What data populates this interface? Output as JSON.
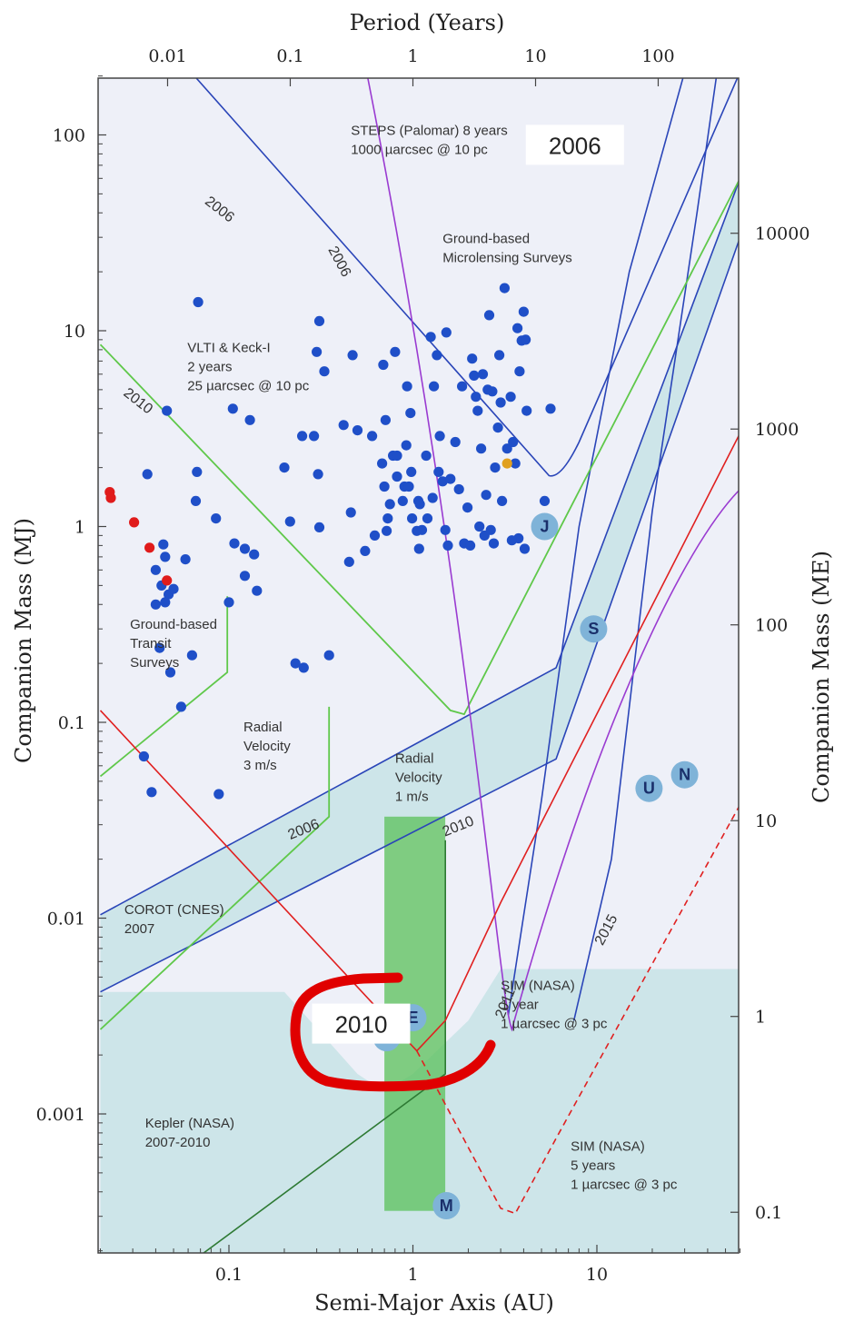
{
  "chart_data": {
    "type": "scatter",
    "xscale": "log",
    "yscale": "log",
    "xlim": [
      0.02,
      60
    ],
    "ylim": [
      0.00018,
      210
    ],
    "top_axis_label": "Period (Years)",
    "top_ticks": [
      {
        "label": "0.01",
        "a": 0.0464
      },
      {
        "label": "0.1",
        "a": 0.2154
      },
      {
        "label": "1",
        "a": 1.0
      },
      {
        "label": "10",
        "a": 4.642
      },
      {
        "label": "100",
        "a": 21.54
      }
    ],
    "xlabel": "Semi-Major Axis (AU)",
    "x_ticks": [
      {
        "label": "0.1",
        "v": 0.1
      },
      {
        "label": "1",
        "v": 1
      },
      {
        "label": "10",
        "v": 10
      }
    ],
    "ylabel_left": "Companion Mass (MJ)",
    "y_ticks_left": [
      {
        "label": "100",
        "v": 100
      },
      {
        "label": "10",
        "v": 10
      },
      {
        "label": "1",
        "v": 1
      },
      {
        "label": "0.1",
        "v": 0.1
      },
      {
        "label": "0.01",
        "v": 0.01
      },
      {
        "label": "0.001",
        "v": 0.001
      }
    ],
    "ylabel_right": "Companion Mass (ME)",
    "y_ticks_right": [
      {
        "label": "10000",
        "v": 10000
      },
      {
        "label": "1000",
        "v": 1000
      },
      {
        "label": "100",
        "v": 100
      },
      {
        "label": "10",
        "v": 10
      },
      {
        "label": "1",
        "v": 1
      },
      {
        "label": "0.1",
        "v": 0.1
      }
    ],
    "earth_per_jupiter": 317.8,
    "boxes": [
      {
        "label": "2006",
        "a": 4.5,
        "m": 80
      },
      {
        "label": "2010",
        "a": 0.31,
        "m": 0.0026
      }
    ],
    "annotations": [
      {
        "lines": [
          "STEPS (Palomar) 8 years",
          "1000 µarcsec @ 10 pc"
        ],
        "a": 0.46,
        "m": 100
      },
      {
        "lines": [
          "Ground-based",
          "Microlensing Surveys"
        ],
        "a": 1.45,
        "m": 28
      },
      {
        "lines": [
          "VLTI & Keck-I",
          "2 years",
          "25 µarcsec @ 10 pc"
        ],
        "a": 0.0595,
        "m": 7.8
      },
      {
        "lines": [
          "Ground-based",
          "Transit",
          "Surveys"
        ],
        "a": 0.029,
        "m": 0.3
      },
      {
        "lines": [
          "Radial",
          "Velocity",
          "3 m/s"
        ],
        "a": 0.12,
        "m": 0.09
      },
      {
        "lines": [
          "Radial",
          "Velocity",
          "1 m/s"
        ],
        "a": 0.8,
        "m": 0.062
      },
      {
        "lines": [
          "COROT (CNES)",
          "2007"
        ],
        "a": 0.027,
        "m": 0.0105
      },
      {
        "lines": [
          "SIM (NASA)",
          "1 year",
          "1 µarcsec @ 3 pc"
        ],
        "a": 3.0,
        "m": 0.0043
      },
      {
        "lines": [
          "SIM (NASA)",
          "5 years",
          "1 µarcsec @ 3 pc"
        ],
        "a": 7.2,
        "m": 0.00065
      },
      {
        "lines": [
          "Kepler (NASA)",
          "2007-2010"
        ],
        "a": 0.035,
        "m": 0.00085
      }
    ],
    "year_labels": [
      {
        "label": "2006",
        "a": 0.086,
        "m": 40,
        "rot": 38
      },
      {
        "label": "2006",
        "a": 0.38,
        "m": 22,
        "rot": 62
      },
      {
        "label": "2010",
        "a": 0.031,
        "m": 4.2,
        "rot": 38
      },
      {
        "label": "2006",
        "a": 0.26,
        "m": 0.027,
        "rot": -22
      },
      {
        "label": "2010",
        "a": 1.8,
        "m": 0.028,
        "rot": -22
      },
      {
        "label": "2011",
        "a": 3.35,
        "m": 0.0036,
        "rot": -68
      },
      {
        "label": "2015",
        "a": 11.8,
        "m": 0.0085,
        "rot": -62
      }
    ],
    "series": [
      {
        "name": "",
        "color": "#1f4fc8",
        "points": [
          [
            0.017,
            0.9
          ],
          [
            0.014,
            1.3
          ],
          [
            0.018,
            0.29
          ],
          [
            0.015,
            4.0
          ],
          [
            0.036,
            1.85
          ],
          [
            0.0345,
            0.067
          ],
          [
            0.038,
            0.044
          ],
          [
            0.04,
            0.6
          ],
          [
            0.04,
            0.4
          ],
          [
            0.042,
            0.24
          ],
          [
            0.044,
            0.81
          ],
          [
            0.045,
            0.7
          ],
          [
            0.043,
            0.5
          ],
          [
            0.045,
            0.41
          ],
          [
            0.046,
            3.9
          ],
          [
            0.047,
            0.45
          ],
          [
            0.048,
            0.18
          ],
          [
            0.05,
            0.48
          ],
          [
            0.055,
            0.12
          ],
          [
            0.058,
            0.68
          ],
          [
            0.063,
            0.22
          ],
          [
            0.067,
            1.9
          ],
          [
            0.068,
            14.0
          ],
          [
            0.066,
            1.35
          ],
          [
            0.085,
            1.1
          ],
          [
            0.088,
            0.043
          ],
          [
            0.1,
            0.41
          ],
          [
            0.105,
            4.0
          ],
          [
            0.107,
            0.82
          ],
          [
            0.122,
            0.77
          ],
          [
            0.13,
            3.5
          ],
          [
            0.122,
            0.56
          ],
          [
            0.137,
            0.72
          ],
          [
            0.142,
            0.47
          ],
          [
            0.2,
            2.0
          ],
          [
            0.215,
            1.06
          ],
          [
            0.23,
            0.2
          ],
          [
            0.255,
            0.19
          ],
          [
            0.25,
            2.9
          ],
          [
            0.31,
            0.99
          ],
          [
            0.305,
            1.85
          ],
          [
            0.29,
            2.9
          ],
          [
            0.3,
            7.8
          ],
          [
            0.31,
            11.2
          ],
          [
            0.33,
            6.2
          ],
          [
            0.35,
            0.22
          ],
          [
            0.42,
            3.3
          ],
          [
            0.45,
            0.66
          ],
          [
            0.46,
            1.18
          ],
          [
            0.47,
            7.5
          ],
          [
            0.5,
            3.1
          ],
          [
            0.55,
            0.75
          ],
          [
            0.6,
            2.9
          ],
          [
            0.62,
            0.9
          ],
          [
            0.68,
            2.1
          ],
          [
            0.69,
            6.7
          ],
          [
            0.7,
            1.6
          ],
          [
            0.71,
            3.5
          ],
          [
            0.73,
            1.1
          ],
          [
            0.72,
            0.95
          ],
          [
            0.75,
            1.3
          ],
          [
            0.78,
            2.3
          ],
          [
            0.8,
            7.8
          ],
          [
            0.82,
            1.8
          ],
          [
            0.82,
            2.3
          ],
          [
            0.88,
            1.35
          ],
          [
            0.9,
            1.6
          ],
          [
            0.92,
            2.6
          ],
          [
            0.93,
            5.2
          ],
          [
            0.95,
            1.6
          ],
          [
            0.97,
            3.8
          ],
          [
            0.98,
            1.9
          ],
          [
            0.99,
            1.1
          ],
          [
            1.05,
            0.95
          ],
          [
            1.07,
            1.35
          ],
          [
            1.09,
            1.3
          ],
          [
            1.08,
            0.77
          ],
          [
            1.12,
            0.96
          ],
          [
            1.18,
            2.3
          ],
          [
            1.2,
            1.1
          ],
          [
            1.25,
            9.3
          ],
          [
            1.28,
            1.4
          ],
          [
            1.3,
            5.2
          ],
          [
            1.35,
            7.5
          ],
          [
            1.38,
            1.9
          ],
          [
            1.4,
            2.9
          ],
          [
            1.45,
            1.7
          ],
          [
            1.52,
            9.8
          ],
          [
            1.5,
            0.96
          ],
          [
            1.55,
            0.8
          ],
          [
            1.6,
            1.75
          ],
          [
            1.7,
            2.7
          ],
          [
            1.78,
            1.55
          ],
          [
            1.85,
            5.2
          ],
          [
            1.9,
            0.82
          ],
          [
            1.98,
            1.25
          ],
          [
            2.05,
            0.8
          ],
          [
            2.1,
            7.2
          ],
          [
            2.15,
            5.9
          ],
          [
            2.2,
            4.6
          ],
          [
            2.25,
            3.9
          ],
          [
            2.3,
            1.0
          ],
          [
            2.35,
            2.5
          ],
          [
            2.4,
            6.0
          ],
          [
            2.45,
            0.9
          ],
          [
            2.55,
            5.0
          ],
          [
            2.6,
            12.0
          ],
          [
            2.65,
            0.96
          ],
          [
            2.7,
            4.9
          ],
          [
            2.75,
            0.82
          ],
          [
            2.8,
            2.0
          ],
          [
            2.9,
            3.2
          ],
          [
            2.95,
            7.5
          ],
          [
            3.0,
            4.3
          ],
          [
            3.05,
            1.35
          ],
          [
            3.15,
            16.5
          ],
          [
            3.25,
            2.5
          ],
          [
            3.4,
            4.6
          ],
          [
            3.5,
            2.7
          ],
          [
            3.6,
            2.1
          ],
          [
            3.7,
            10.3
          ],
          [
            3.75,
            0.87
          ],
          [
            3.8,
            6.2
          ],
          [
            3.9,
            8.9
          ],
          [
            4.0,
            12.5
          ],
          [
            4.05,
            0.77
          ],
          [
            4.1,
            9.0
          ],
          [
            4.15,
            3.9
          ],
          [
            5.2,
            1.35
          ],
          [
            5.6,
            4.0
          ],
          [
            3.45,
            0.85
          ],
          [
            2.5,
            1.45
          ]
        ]
      },
      {
        "name": "",
        "color": "#e01b1b",
        "points": [
          [
            0.0225,
            1.5
          ],
          [
            0.0228,
            1.4
          ],
          [
            0.0305,
            1.05
          ],
          [
            0.037,
            0.78
          ],
          [
            0.046,
            0.53
          ]
        ]
      },
      {
        "name": "",
        "color": "#e0a020",
        "points": [
          [
            3.25,
            2.1
          ]
        ]
      }
    ],
    "planets": [
      {
        "label": "J",
        "a": 5.2,
        "m": 1.0
      },
      {
        "label": "S",
        "a": 9.6,
        "m": 0.3
      },
      {
        "label": "U",
        "a": 19.2,
        "m": 0.046
      },
      {
        "label": "N",
        "a": 30.0,
        "m": 0.054
      },
      {
        "label": "E",
        "a": 1.0,
        "m": 0.0031
      },
      {
        "label": "V",
        "a": 0.72,
        "m": 0.00245
      },
      {
        "label": "M",
        "a": 1.52,
        "m": 0.00034
      }
    ]
  }
}
